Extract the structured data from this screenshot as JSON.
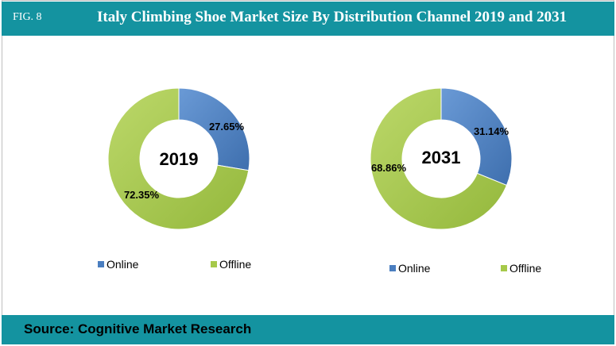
{
  "header": {
    "fig_label": "FIG. 8",
    "title": "Italy Climbing Shoe Market Size By Distribution Channel 2019 and 2031"
  },
  "footer": {
    "source": "Source: Cognitive Market Research"
  },
  "colors": {
    "header_bg": "#1493a0",
    "online": "#4a7ec0",
    "offline": "#a6c94a"
  },
  "chart_data": [
    {
      "type": "pie",
      "center_label": "2019",
      "categories": [
        "Online",
        "Offline"
      ],
      "values": [
        27.65,
        72.35
      ],
      "labels": [
        "27.65%",
        "72.35%"
      ],
      "legend": [
        "Online",
        "Offline"
      ],
      "legend_position": "bottom"
    },
    {
      "type": "pie",
      "center_label": "2031",
      "categories": [
        "Online",
        "Offline"
      ],
      "values": [
        31.14,
        68.86
      ],
      "labels": [
        "31.14%",
        "68.86%"
      ],
      "legend": [
        "Online",
        "Offline"
      ],
      "legend_position": "bottom"
    }
  ]
}
